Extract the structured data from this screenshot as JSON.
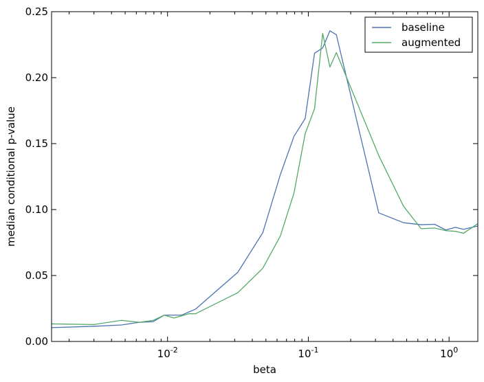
{
  "chart_data": {
    "type": "line",
    "xlabel": "beta",
    "ylabel": "median conditional p-value",
    "xscale": "log",
    "xlim": [
      0.0015,
      1.6
    ],
    "ylim": [
      0,
      0.25
    ],
    "grid": false,
    "legend_position": "top-right",
    "x_ticks": [
      {
        "value": 0.01,
        "base": "10",
        "exp": "-2"
      },
      {
        "value": 0.1,
        "base": "10",
        "exp": "-1"
      },
      {
        "value": 1,
        "base": "10",
        "exp": "0"
      }
    ],
    "y_ticks": [
      {
        "value": 0.0,
        "label": "0.00"
      },
      {
        "value": 0.05,
        "label": "0.05"
      },
      {
        "value": 0.1,
        "label": "0.10"
      },
      {
        "value": 0.15,
        "label": "0.15"
      },
      {
        "value": 0.2,
        "label": "0.20"
      },
      {
        "value": 0.25,
        "label": "0.25"
      }
    ],
    "series": [
      {
        "name": "baseline",
        "color": "#4c72b0",
        "points": [
          [
            0.0015,
            0.0105
          ],
          [
            0.003,
            0.0115
          ],
          [
            0.0047,
            0.0125
          ],
          [
            0.0063,
            0.0145
          ],
          [
            0.0079,
            0.015
          ],
          [
            0.0095,
            0.02
          ],
          [
            0.0126,
            0.02
          ],
          [
            0.0158,
            0.0245
          ],
          [
            0.0316,
            0.0525
          ],
          [
            0.0475,
            0.0825
          ],
          [
            0.0633,
            0.1265
          ],
          [
            0.0791,
            0.1555
          ],
          [
            0.095,
            0.169
          ],
          [
            0.1107,
            0.2185
          ],
          [
            0.1265,
            0.2225
          ],
          [
            0.1424,
            0.2355
          ],
          [
            0.1582,
            0.2325
          ],
          [
            0.3164,
            0.0975
          ],
          [
            0.4746,
            0.09
          ],
          [
            0.6328,
            0.0885
          ],
          [
            0.791,
            0.0888
          ],
          [
            0.9492,
            0.0845
          ],
          [
            1.107,
            0.0865
          ],
          [
            1.265,
            0.085
          ],
          [
            1.6,
            0.0875
          ]
        ]
      },
      {
        "name": "augmented",
        "color": "#55a868",
        "points": [
          [
            0.0015,
            0.0133
          ],
          [
            0.003,
            0.0128
          ],
          [
            0.0047,
            0.016
          ],
          [
            0.0063,
            0.0145
          ],
          [
            0.0079,
            0.016
          ],
          [
            0.0095,
            0.02
          ],
          [
            0.0111,
            0.0178
          ],
          [
            0.0142,
            0.021
          ],
          [
            0.0158,
            0.021
          ],
          [
            0.0316,
            0.037
          ],
          [
            0.0475,
            0.0555
          ],
          [
            0.0633,
            0.08
          ],
          [
            0.0791,
            0.1125
          ],
          [
            0.095,
            0.1575
          ],
          [
            0.1107,
            0.1765
          ],
          [
            0.1265,
            0.2335
          ],
          [
            0.1424,
            0.208
          ],
          [
            0.1582,
            0.219
          ],
          [
            0.3164,
            0.141
          ],
          [
            0.4746,
            0.1025
          ],
          [
            0.6328,
            0.0855
          ],
          [
            0.791,
            0.086
          ],
          [
            0.9492,
            0.084
          ],
          [
            1.107,
            0.0835
          ],
          [
            1.265,
            0.082
          ],
          [
            1.6,
            0.0893
          ]
        ]
      }
    ]
  }
}
